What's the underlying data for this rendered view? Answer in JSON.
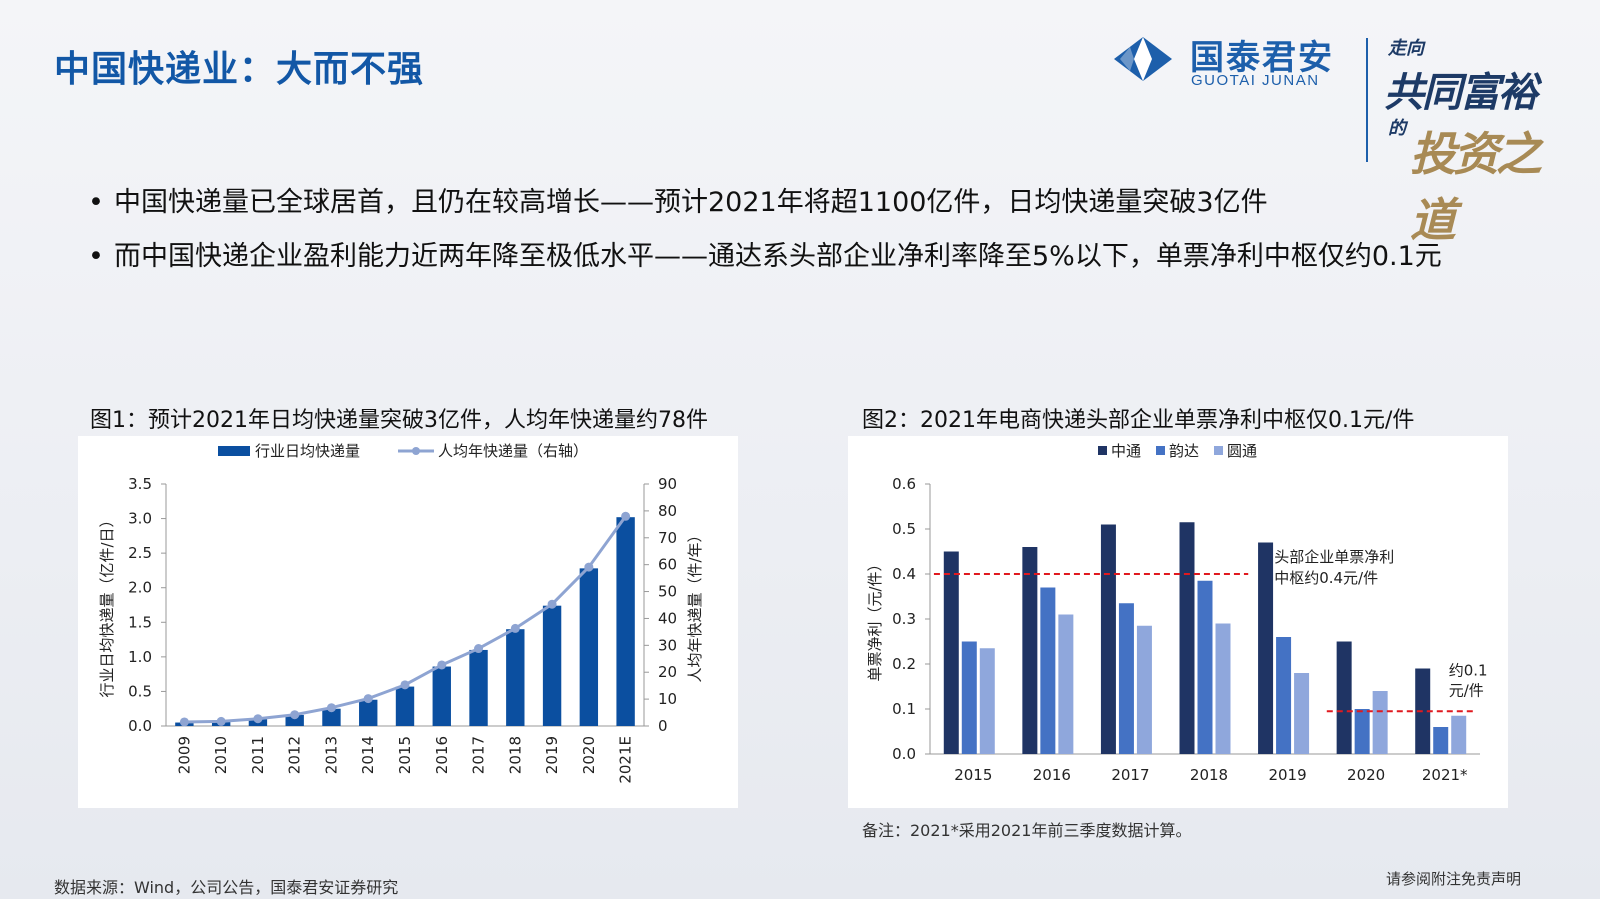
{
  "header": {
    "title": "中国快递业：大而不强",
    "logo_cn": "国泰君安",
    "logo_en": "GUOTAI JUNAN",
    "slogan_1": "走向",
    "slogan_2": "共同富裕",
    "slogan_3": "的",
    "slogan_4": "投资之道"
  },
  "bullets": [
    "中国快递量已全球居首，且仍在较高增长——预计2021年将超1100亿件，日均快递量突破3亿件",
    "而中国快递企业盈利能力近两年降至极低水平——通达系头部企业净利率降至5%以下，单票净利中枢仅约0.1元"
  ],
  "figure1": {
    "title": "图1：预计2021年日均快递量突破3亿件，人均年快递量约78件"
  },
  "figure2": {
    "title": "图2：2021年电商快递头部企业单票净利中枢仅0.1元/件",
    "note": "备注：2021*采用2021年前三季度数据计算。"
  },
  "footer": {
    "source": "数据来源：Wind，公司公告，国泰君安证券研究",
    "disclaimer": "请参阅附注免责声明"
  },
  "colors": {
    "title_blue": "#1257a6",
    "bar_blue": "#0b4fa0",
    "line_lavender": "#8ea4d2",
    "zto": "#1f3464",
    "yunda": "#4472c4",
    "yto": "#8fa7dc",
    "ref_line": "#e0191f"
  },
  "chart_data": [
    {
      "type": "bar",
      "categories": [
        "2009",
        "2010",
        "2011",
        "2012",
        "2013",
        "2014",
        "2015",
        "2016",
        "2017",
        "2018",
        "2019",
        "2020",
        "2021E"
      ],
      "series": [
        {
          "name": "行业日均快递量",
          "type": "bar",
          "axis": "left",
          "values": [
            0.05,
            0.06,
            0.1,
            0.16,
            0.25,
            0.38,
            0.57,
            0.86,
            1.1,
            1.4,
            1.74,
            2.28,
            3.02
          ]
        },
        {
          "name": "人均年快递量（右轴）",
          "type": "line",
          "axis": "right",
          "values": [
            1.5,
            1.7,
            2.7,
            4.2,
            6.8,
            10.2,
            15.3,
            22.7,
            28.8,
            36.3,
            45.3,
            59.1,
            78.0
          ]
        }
      ],
      "ylabel": "行业日均快递量（亿件/日）",
      "y2label": "人均年快递量（件/年）",
      "ylim": [
        0,
        3.5
      ],
      "y2lim": [
        0,
        90
      ],
      "yticks": [
        "0.0",
        "0.5",
        "1.0",
        "1.5",
        "2.0",
        "2.5",
        "3.0",
        "3.5"
      ],
      "y2ticks": [
        "0",
        "10",
        "20",
        "30",
        "40",
        "50",
        "60",
        "70",
        "80",
        "90"
      ],
      "legend": "top"
    },
    {
      "type": "bar",
      "categories": [
        "2015",
        "2016",
        "2017",
        "2018",
        "2019",
        "2020",
        "2021*"
      ],
      "series": [
        {
          "name": "中通",
          "values": [
            0.45,
            0.46,
            0.51,
            0.515,
            0.47,
            0.25,
            0.19
          ]
        },
        {
          "name": "韵达",
          "values": [
            0.25,
            0.37,
            0.335,
            0.385,
            0.26,
            0.1,
            0.06
          ]
        },
        {
          "name": "圆通",
          "values": [
            0.235,
            0.31,
            0.285,
            0.29,
            0.18,
            0.14,
            0.085
          ]
        }
      ],
      "ylabel": "单票净利（元/件）",
      "ylim": [
        0,
        0.6
      ],
      "yticks": [
        "0.0",
        "0.1",
        "0.2",
        "0.3",
        "0.4",
        "0.5",
        "0.6"
      ],
      "legend": "top",
      "reference_lines": [
        {
          "value": 0.4,
          "from": "2015",
          "to": "2018",
          "label_1": "头部企业单票净利",
          "label_2": "中枢约0.4元/件"
        },
        {
          "value": 0.095,
          "from": "2020",
          "to": "2021*",
          "label_1": "约0.1",
          "label_2": "元/件"
        }
      ]
    }
  ]
}
